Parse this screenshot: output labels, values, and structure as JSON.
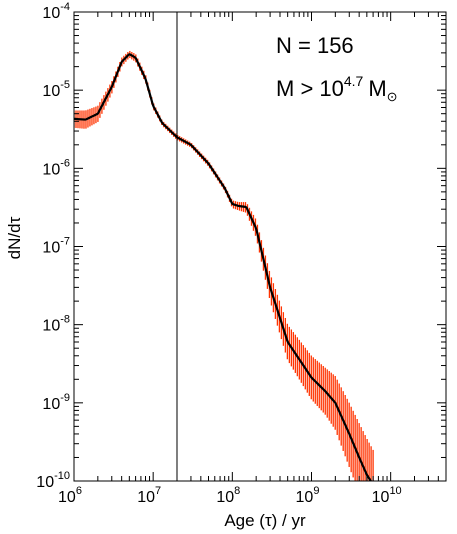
{
  "chart_data": {
    "type": "line",
    "title": "",
    "xlabel": "Age (τ) / yr",
    "ylabel": "dN/dτ",
    "x_scale": "log",
    "y_scale": "log",
    "xlim": [
      1000000,
      50000000000
    ],
    "ylim": [
      1e-10,
      0.0001
    ],
    "x_ticks": [
      {
        "value": 1000000,
        "base": "10",
        "exp": "6"
      },
      {
        "value": 10000000,
        "base": "10",
        "exp": "7"
      },
      {
        "value": 100000000,
        "base": "10",
        "exp": "8"
      },
      {
        "value": 1000000000,
        "base": "10",
        "exp": "9"
      },
      {
        "value": 10000000000,
        "base": "10",
        "exp": "10"
      }
    ],
    "y_ticks": [
      {
        "value": 1e-10,
        "base": "10",
        "exp": "-10"
      },
      {
        "value": 1e-09,
        "base": "10",
        "exp": "-9"
      },
      {
        "value": 1e-08,
        "base": "10",
        "exp": "-8"
      },
      {
        "value": 1e-07,
        "base": "10",
        "exp": "-7"
      },
      {
        "value": 1e-06,
        "base": "10",
        "exp": "-6"
      },
      {
        "value": 1e-05,
        "base": "10",
        "exp": "-5"
      },
      {
        "value": 0.0001,
        "base": "10",
        "exp": "-4"
      }
    ],
    "vertical_line_x": 20000000,
    "annotations": {
      "n_text": "N = 156",
      "m_prefix": "M > 10",
      "m_exp": "4.7",
      "m_unit": "M",
      "m_sun": "⊙"
    },
    "series": [
      {
        "color": "#000000",
        "band_color": "#ff3300",
        "x": [
          1000000,
          1400000,
          2000000,
          3000000,
          4000000,
          5000000,
          6000000,
          8000000,
          10000000,
          13000000,
          20000000,
          30000000,
          50000000,
          80000000,
          100000000,
          120000000,
          150000000,
          200000000,
          300000000,
          500000000,
          1000000000,
          1500000000,
          2000000000,
          3000000000,
          4000000000,
          5000000000,
          6000000000
        ],
        "y": [
          4.3e-06,
          4.2e-06,
          5e-06,
          1.1e-05,
          2.3e-05,
          2.9e-05,
          2.6e-05,
          1.4e-05,
          6.3e-06,
          3.8e-06,
          2.5e-06,
          2e-06,
          1.15e-06,
          5.6e-07,
          3.5e-07,
          3.3e-07,
          3.2e-07,
          1.7e-07,
          3e-08,
          6e-09,
          2.1e-09,
          1.4e-09,
          1e-09,
          4e-10,
          2e-10,
          1.2e-10,
          9e-11
        ],
        "y_low": [
          3.3e-06,
          3.2e-06,
          3.9e-06,
          9e-06,
          2e-05,
          2.6e-05,
          2.3e-05,
          1.25e-05,
          5.7e-06,
          3.5e-06,
          2.3e-06,
          1.85e-06,
          1.05e-06,
          5.1e-07,
          3.1e-07,
          2.9e-07,
          2.7e-07,
          1.3e-07,
          2e-08,
          3.5e-09,
          1.1e-09,
          7e-10,
          4.5e-10,
          1.5e-10,
          7e-11,
          5e-11,
          4e-11
        ],
        "y_high": [
          5.5e-06,
          5.5e-06,
          6.3e-06,
          1.3e-05,
          2.6e-05,
          3.2e-05,
          2.9e-05,
          1.6e-05,
          7e-06,
          4.1e-06,
          2.7e-06,
          2.15e-06,
          1.25e-06,
          6.1e-07,
          3.9e-07,
          3.7e-07,
          3.7e-07,
          2.2e-07,
          4.5e-08,
          1e-08,
          4e-09,
          2.8e-09,
          2.2e-09,
          1e-09,
          5.5e-10,
          3.5e-10,
          2.5e-10
        ]
      }
    ]
  }
}
